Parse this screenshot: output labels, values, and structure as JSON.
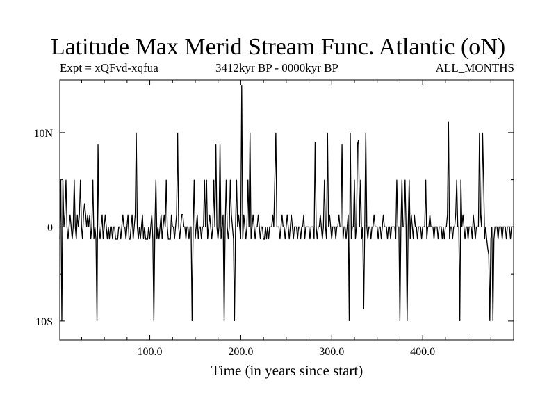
{
  "chart_data": {
    "type": "line",
    "title": "Latitude Max Merid Stream Func. Atlantic (oN)",
    "annotations": {
      "left": "Expt = xQFvd-xqfua",
      "center": "3412kyr BP - 0000kyr BP",
      "right": "ALL_MONTHS"
    },
    "xlabel": "Time (in years since start)",
    "ylabel": "",
    "xlim": [
      1,
      500
    ],
    "ylim": [
      -12,
      15.6
    ],
    "x_ticks": [
      100,
      200,
      300,
      400
    ],
    "x_tick_labels": [
      "100.0",
      "200.0",
      "300.0",
      "400.0"
    ],
    "y_ticks": [
      -10,
      0,
      10
    ],
    "y_tick_labels": [
      "10S",
      "0",
      "10N"
    ],
    "grid": false,
    "legend": "none",
    "series": [
      {
        "values": [
          -1.3,
          5,
          -10,
          5,
          0,
          1.3,
          5,
          0,
          -1.3,
          0,
          1.3,
          0,
          -1.3,
          0,
          5,
          0,
          -1.3,
          1.3,
          0,
          1.3,
          5,
          0,
          -1.3,
          1.3,
          2.5,
          1.3,
          0,
          1.3,
          0,
          1.3,
          -1.3,
          0,
          5,
          -1.3,
          0,
          -1.3,
          -10,
          8.8,
          0,
          -1.3,
          0,
          1.3,
          -1.3,
          0,
          1.3,
          0,
          -1.3,
          0,
          -1.3,
          0,
          0,
          -1.3,
          0,
          0,
          -1.3,
          -1.3,
          -1.3,
          0,
          0,
          -1.3,
          0,
          1.3,
          0,
          0,
          -1.3,
          0,
          1.3,
          -1.3,
          -1.3,
          0,
          1.3,
          -1.3,
          0,
          1.3,
          10,
          0,
          -1.3,
          0,
          -1.3,
          0,
          1.3,
          -1.3,
          0,
          -1.3,
          -1.3,
          -1.3,
          0,
          -1.3,
          0,
          1.3,
          -1.3,
          -10,
          0,
          5,
          -1.3,
          0,
          -1.3,
          0,
          1.3,
          -1.3,
          0,
          1.3,
          0,
          5,
          0,
          -1.3,
          -1.3,
          -1.3,
          1.3,
          0,
          0,
          -1.3,
          0,
          1.3,
          10,
          0,
          -1.3,
          0,
          1.3,
          1.3,
          0,
          0,
          -1.3,
          0,
          0,
          -1.3,
          0,
          0,
          -10,
          0,
          5,
          -1.3,
          0,
          1.3,
          -1.3,
          0,
          0,
          -1.3,
          0,
          0,
          5,
          0,
          5,
          -1.3,
          0,
          1.3,
          0,
          -1.3,
          0,
          5,
          0,
          8.8,
          0,
          -1.3,
          0,
          8.8,
          -1.3,
          0,
          1.3,
          -10,
          0,
          5,
          0,
          -1.3,
          0,
          5,
          1.3,
          0,
          -1.3,
          -10,
          0,
          5,
          0,
          1.3,
          0,
          -1.3,
          15,
          -1.3,
          1.3,
          0,
          -1.3,
          0,
          5,
          0,
          10,
          -1.3,
          0,
          1.3,
          0,
          -1.3,
          0,
          0,
          1.3,
          0,
          -1.3,
          0,
          0,
          -1.3,
          -1.3,
          0,
          -1.3,
          0,
          -1.3,
          0,
          0,
          0,
          1.3,
          0,
          5,
          10,
          0,
          0,
          0,
          -1.3,
          0,
          1.3,
          0,
          0,
          -1.3,
          0,
          1.3,
          0,
          -1.3,
          0,
          1.3,
          0,
          -1.3,
          0,
          0,
          0,
          -1.3,
          0,
          0,
          -1.3,
          0,
          0,
          1.3,
          -1.3,
          0,
          0,
          0,
          0,
          -1.3,
          0,
          0,
          0,
          -1.3,
          9,
          0,
          -1.3,
          0,
          0,
          1.3,
          0,
          -1.3,
          0,
          5,
          0,
          -1.3,
          10,
          0,
          1.3,
          0,
          -1.3,
          0,
          0,
          0,
          -1.3,
          0,
          0,
          1.3,
          0,
          0,
          8.8,
          -1.3,
          0,
          0,
          -1.3,
          0,
          1.3,
          -10,
          10,
          -1.3,
          0,
          0,
          5,
          -1.3,
          0,
          8.8,
          9.2,
          0,
          5,
          -1.3,
          0,
          -8.7,
          0,
          10,
          0,
          -1.3,
          0,
          0,
          -1.3,
          0,
          0,
          1.3,
          0,
          0,
          0,
          -1.3,
          0,
          0,
          -1.3,
          0,
          1.3,
          0,
          0,
          0,
          -1.3,
          0,
          0,
          -1.3,
          0,
          0,
          0,
          0,
          -1.3,
          5,
          0,
          0,
          -10,
          0,
          5,
          0,
          0,
          5,
          0,
          -10,
          0,
          5,
          -1.3,
          1.3,
          0,
          -1.3,
          1.3,
          0,
          0,
          -1.3,
          0,
          0,
          0,
          -1.3,
          0,
          0,
          0,
          5,
          -1.3,
          0,
          0,
          1.3,
          0,
          0,
          0,
          -1.3,
          0,
          0,
          0,
          -1.3,
          0,
          0,
          0,
          -1.3,
          0,
          -1.3,
          0,
          0,
          1.3,
          11.2,
          -1.3,
          0,
          0,
          -1.3,
          0,
          0,
          1.3,
          5,
          0,
          0,
          -10,
          5,
          0,
          1.3,
          0,
          -1.3,
          0,
          0,
          -1.3,
          0,
          0,
          0,
          -1.3,
          1.3,
          0,
          -1.3,
          0,
          0,
          0,
          10,
          1.3,
          0,
          10,
          5,
          -1.3,
          0,
          -1.3,
          -2.3,
          -3,
          -10,
          -1.3,
          0,
          -10,
          -1.3,
          0,
          0,
          0,
          -1.3,
          0,
          0,
          0,
          -1.3,
          0,
          0,
          0,
          -1.3,
          0,
          0,
          0,
          -1.3,
          0,
          0,
          0
        ]
      }
    ]
  }
}
